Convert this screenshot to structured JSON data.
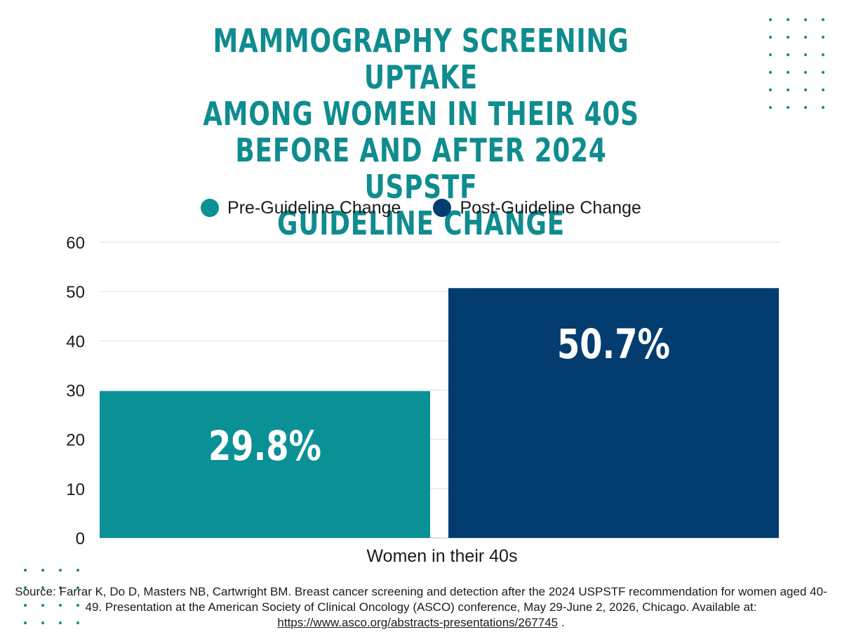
{
  "title": "MAMMOGRAPHY SCREENING UPTAKE\nAMONG WOMEN IN THEIR 40S\nBEFORE AND AFTER 2024 USPSTF\nGUIDELINE CHANGE",
  "colors": {
    "title": "#0f8c8f",
    "pre": "#0a9196",
    "post": "#033d70",
    "grid": "#d9dde3",
    "dots": "#14878c",
    "label": "#ffffff"
  },
  "chart_data": {
    "type": "bar",
    "title": "MAMMOGRAPHY SCREENING UPTAKE AMONG WOMEN IN THEIR 40S BEFORE AND AFTER 2024 USPSTF GUIDELINE CHANGE",
    "categories": [
      "Women in their 40s"
    ],
    "series": [
      {
        "name": "Pre-Guideline Change",
        "values": [
          29.8
        ],
        "label": "29.8%"
      },
      {
        "name": "Post-Guideline Change",
        "values": [
          50.7
        ],
        "label": "50.7%"
      }
    ],
    "yticks": [
      "0",
      "10",
      "20",
      "30",
      "40",
      "50",
      "60"
    ],
    "ylim": [
      0,
      60
    ],
    "grid": true,
    "legend": "top-center"
  },
  "source": {
    "text": "Source: Farrar K, Do D, Masters NB, Cartwright BM. Breast cancer screening and detection after the 2024 USPSTF recommendation for women aged 40-49. Presentation at the American Society of Clinical Oncology (ASCO) conference, May 29-June 2, 2026, Chicago. Available at: ",
    "link": "https://www.asco.org/abstracts-presentations/267745",
    "suffix": " ."
  }
}
